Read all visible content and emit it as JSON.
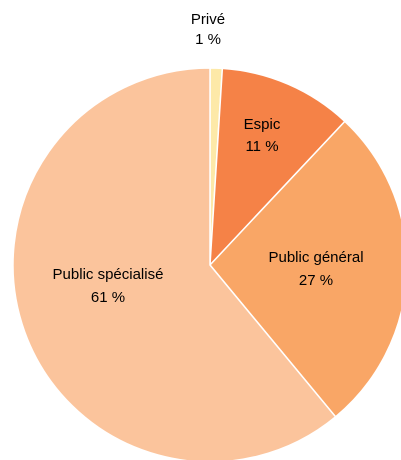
{
  "chart_data": {
    "type": "pie",
    "title": "",
    "start_angle_deg": 0,
    "direction": "clockwise",
    "slices": [
      {
        "name": "Privé",
        "value": 1,
        "value_label": "1 %",
        "color": "#FDE9A8"
      },
      {
        "name": "Espic",
        "value": 11,
        "value_label": "11 %",
        "color": "#F58247"
      },
      {
        "name": "Public général",
        "value": 27,
        "value_label": "27 %",
        "color": "#F9A666"
      },
      {
        "name": "Public spécialisé",
        "value": 61,
        "value_label": "61 %",
        "color": "#FBC49C"
      }
    ]
  }
}
